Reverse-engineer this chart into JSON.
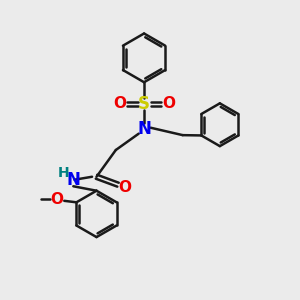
{
  "background_color": "#ebebeb",
  "bond_color": "#1a1a1a",
  "atom_colors": {
    "N": "#0000ee",
    "O": "#ee0000",
    "S": "#cccc00",
    "H": "#008080",
    "C": "#1a1a1a"
  },
  "figsize": [
    3.0,
    3.0
  ],
  "dpi": 100
}
